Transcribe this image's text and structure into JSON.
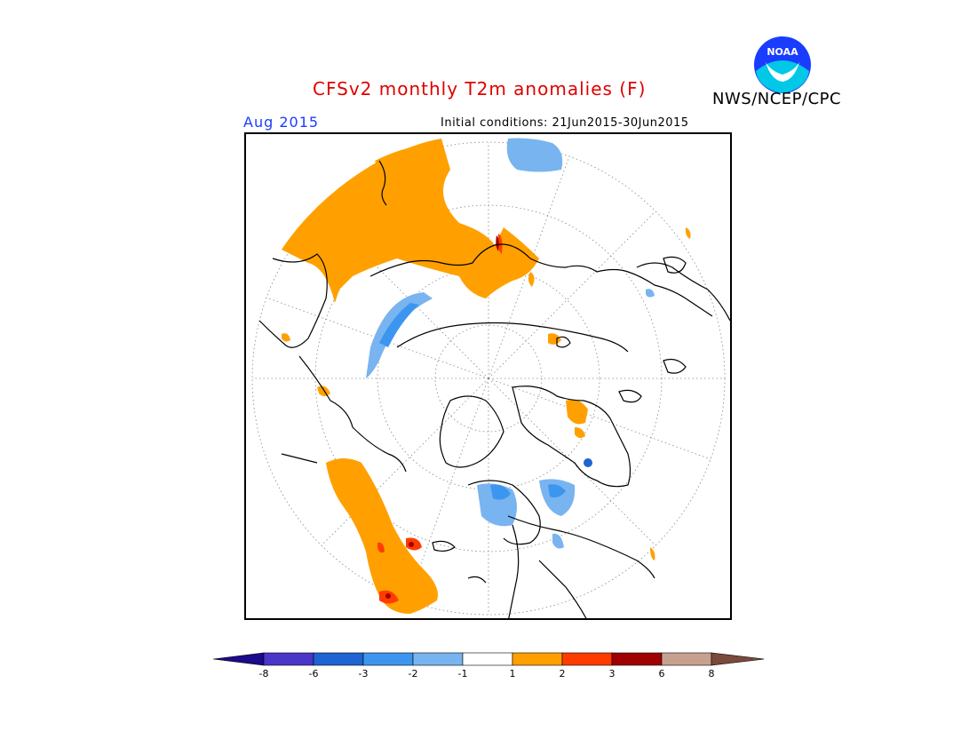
{
  "header": {
    "title": "CFSv2 monthly T2m anomalies (F)",
    "agency": "NWS/NCEP/CPC",
    "logo_text": "NOAA",
    "month": "Aug 2015",
    "initial_conditions": "Initial conditions: 21Jun2015-30Jun2015"
  },
  "map": {
    "projection": "north-polar-stereographic",
    "graticule": "dotted",
    "coastline_color": "#000000"
  },
  "legend": {
    "tick_labels": [
      "-8",
      "-6",
      "-3",
      "-2",
      "-1",
      "1",
      "2",
      "3",
      "6",
      "8"
    ],
    "bins": [
      {
        "range": "< -8",
        "color": "#1c0a8c"
      },
      {
        "range": "-8 to -6",
        "color": "#4a36c8"
      },
      {
        "range": "-6 to -3",
        "color": "#1e64d2"
      },
      {
        "range": "-3 to -2",
        "color": "#3c96f0"
      },
      {
        "range": "-2 to -1",
        "color": "#78b4f0"
      },
      {
        "range": "-1 to 1",
        "color": "#ffffff"
      },
      {
        "range": "1 to 2",
        "color": "#ffa000"
      },
      {
        "range": "2 to 3",
        "color": "#ff3c00"
      },
      {
        "range": "3 to 6",
        "color": "#a00000"
      },
      {
        "range": "6 to 8",
        "color": "#c8a090"
      },
      {
        "range": "> 8",
        "color": "#7a4a3a"
      }
    ]
  }
}
